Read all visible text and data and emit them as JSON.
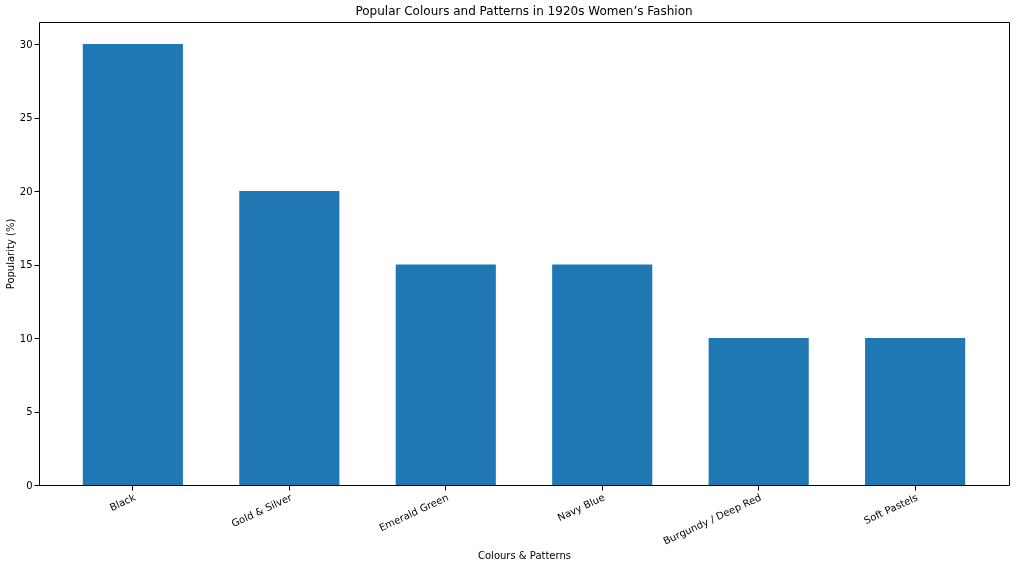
{
  "chart_data": {
    "type": "bar",
    "title": "Popular Colours and Patterns in 1920s Women’s Fashion",
    "xlabel": "Colours & Patterns",
    "ylabel": "Popularity (%)",
    "categories": [
      "Black",
      "Gold & Silver",
      "Emerald Green",
      "Navy Blue",
      "Burgundy / Deep Red",
      "Soft Pastels"
    ],
    "values": [
      30,
      20,
      15,
      15,
      10,
      10
    ],
    "color": "#1f77b4",
    "ylim": [
      0,
      31.5
    ],
    "yticks": [
      0,
      5,
      10,
      15,
      20,
      25,
      30
    ],
    "grid": false
  }
}
